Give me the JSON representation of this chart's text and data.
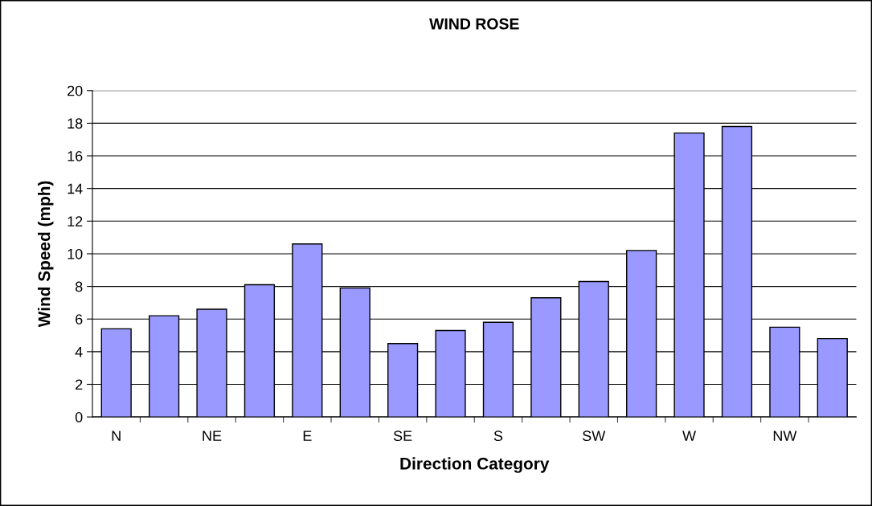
{
  "chart_data": {
    "type": "bar",
    "title": "WIND ROSE",
    "xlabel": "Direction Category",
    "ylabel": "Wind Speed (mph)",
    "categories": [
      "N",
      null,
      "NE",
      null,
      "E",
      null,
      "SE",
      null,
      "S",
      null,
      "SW",
      null,
      "W",
      null,
      "NW",
      null
    ],
    "values": [
      5.4,
      6.2,
      6.6,
      8.1,
      10.6,
      7.9,
      4.5,
      5.3,
      5.8,
      7.3,
      8.3,
      10.2,
      17.4,
      17.8,
      5.5,
      4.8
    ],
    "color": "#9999ff",
    "ylim": [
      0,
      20
    ],
    "yticks": [
      0,
      2,
      4,
      6,
      8,
      10,
      12,
      14,
      16,
      18,
      20
    ],
    "grid": "y",
    "legend": false
  }
}
